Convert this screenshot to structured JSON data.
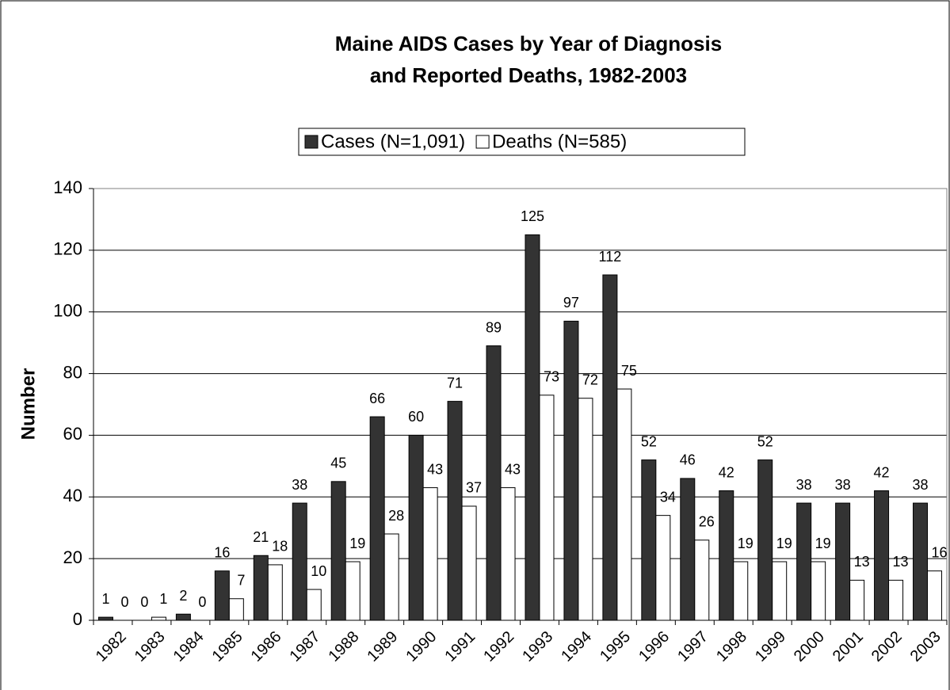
{
  "chart_data": {
    "type": "bar",
    "title": "Maine AIDS Cases by Year of Diagnosis",
    "subtitle": "and Reported Deaths, 1982-2003",
    "y_label": "Number",
    "categories": [
      "1982",
      "1983",
      "1984",
      "1985",
      "1986",
      "1987",
      "1988",
      "1989",
      "1990",
      "1991",
      "1992",
      "1993",
      "1994",
      "1995",
      "1996",
      "1997",
      "1998",
      "1999",
      "2000",
      "2001",
      "2002",
      "2003"
    ],
    "series": [
      {
        "name": "Cases (N=1,091)",
        "color": "#333333",
        "values": [
          1,
          0,
          2,
          16,
          21,
          38,
          45,
          66,
          60,
          71,
          89,
          125,
          97,
          112,
          52,
          46,
          42,
          52,
          38,
          38,
          42,
          38
        ]
      },
      {
        "name": "Deaths (N=585)",
        "color": "#ffffff",
        "values": [
          0,
          1,
          0,
          7,
          18,
          10,
          19,
          28,
          43,
          37,
          43,
          73,
          72,
          75,
          34,
          26,
          19,
          19,
          19,
          13,
          13,
          16
        ]
      }
    ],
    "ylim": [
      0,
      140
    ],
    "yticks": [
      0,
      20,
      40,
      60,
      80,
      100,
      120,
      140
    ],
    "grid": true,
    "legend": "top"
  }
}
